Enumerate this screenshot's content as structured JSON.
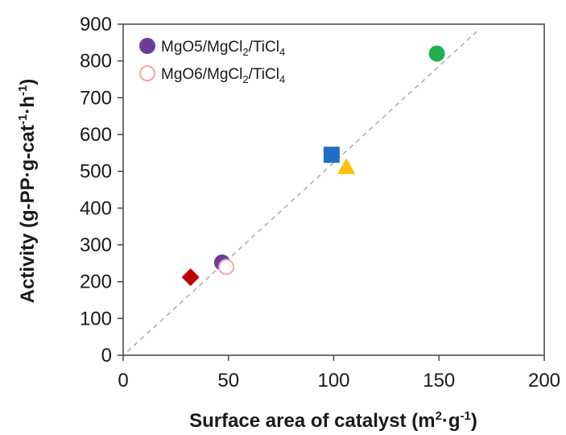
{
  "chart_data": {
    "type": "scatter",
    "xlabel": {
      "main": "Surface area of catalyst (m",
      "sup1": "2",
      "mid": "·g",
      "sup2": "-1",
      "end": ")"
    },
    "ylabel": {
      "main": "Activity (g-PP·g-cat",
      "sup1": "-1",
      "mid": "·h",
      "sup2": "-1",
      "end": ")"
    },
    "xlim": [
      0,
      200
    ],
    "ylim": [
      0,
      900
    ],
    "xticks": [
      0,
      50,
      100,
      150,
      200
    ],
    "yticks": [
      0,
      100,
      200,
      300,
      400,
      500,
      600,
      700,
      800,
      900
    ],
    "grid": false,
    "legend_position": "top-left",
    "legend": [
      {
        "label_parts": [
          "MgO5/MgCl",
          "2",
          "/TiCl",
          "4"
        ],
        "marker": "circle-filled",
        "color": "#6a3d9a"
      },
      {
        "label_parts": [
          "MgO6/MgCl",
          "2",
          "/TiCl",
          "4"
        ],
        "marker": "circle-open",
        "color": "#f4a6a6"
      }
    ],
    "points": [
      {
        "x": 32,
        "y": 212,
        "marker": "diamond",
        "color": "#c00000"
      },
      {
        "x": 47,
        "y": 252,
        "marker": "circle-filled",
        "color": "#6a3d9a"
      },
      {
        "x": 49,
        "y": 240,
        "marker": "circle-open",
        "color": "#f4a6a6"
      },
      {
        "x": 99,
        "y": 545,
        "marker": "square",
        "color": "#1f6fc1"
      },
      {
        "x": 106,
        "y": 512,
        "marker": "triangle",
        "color": "#ffc000"
      },
      {
        "x": 149,
        "y": 820,
        "marker": "circle-filled",
        "color": "#22b14c"
      }
    ],
    "fit_line": {
      "x": [
        2,
        168
      ],
      "y": [
        10,
        880
      ],
      "style": "dashed",
      "color": "#b0b0b0"
    }
  }
}
